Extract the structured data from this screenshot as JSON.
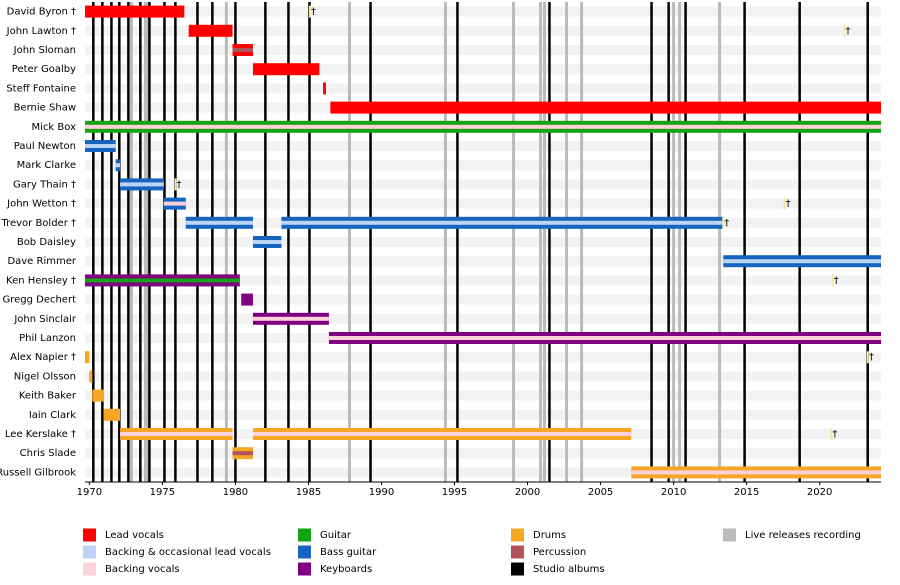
{
  "chart_data": {
    "type": "timeline",
    "xlim": [
      1969.7,
      2024.2
    ],
    "xticks": [
      1970,
      1975,
      1980,
      1985,
      1990,
      1995,
      2000,
      2005,
      2010,
      2015,
      2020
    ],
    "death_symbol": "†",
    "roles": [
      {
        "name": "Lead vocals",
        "color": "#ff0000"
      },
      {
        "name": "Backing & occasional lead vocals",
        "color": "#bcd4f6"
      },
      {
        "name": "Backing vocals",
        "color": "#fcd3da"
      },
      {
        "name": "Guitar",
        "color": "#13a313"
      },
      {
        "name": "Bass guitar",
        "color": "#1565c0"
      },
      {
        "name": "Keyboards",
        "color": "#800080"
      },
      {
        "name": "Drums",
        "color": "#f5a623"
      },
      {
        "name": "Percussion",
        "color": "#b0545a"
      }
    ],
    "studio_albums": {
      "name": "Studio albums",
      "color": "#000000",
      "years": [
        1970.27,
        1970.89,
        1971.51,
        1972.05,
        1972.67,
        1973.49,
        1974.11,
        1975.14,
        1975.89,
        1977.4,
        1978.42,
        1980.0,
        1982.05,
        1983.63,
        1985.07,
        1989.25,
        1995.2,
        2001.5,
        2008.49,
        2009.66,
        2010.82,
        2014.86,
        2018.63,
        2023.29
      ]
    },
    "live_releases": {
      "name": "Live releases recording",
      "color": "#bbbbbb",
      "years": [
        1972.88,
        1973.84,
        1973.97,
        1979.38,
        1987.81,
        1994.38,
        1999.04,
        2000.89,
        2001.16,
        2002.67,
        2003.7,
        2010.0,
        2010.41,
        2013.15
      ]
    },
    "members": [
      {
        "name": "David Byron †",
        "died": 1985.1,
        "periods": [
          {
            "role": "Lead vocals",
            "start": 1969.7,
            "end": 1976.5
          }
        ]
      },
      {
        "name": "John Lawton †",
        "died": 2021.7,
        "periods": [
          {
            "role": "Lead vocals",
            "start": 1976.8,
            "end": 1979.8
          }
        ]
      },
      {
        "name": "John Sloman",
        "periods": [
          {
            "role": "Lead vocals",
            "secondary": "Percussion",
            "start": 1979.8,
            "end": 1981.2
          }
        ]
      },
      {
        "name": "Peter Goalby",
        "periods": [
          {
            "role": "Lead vocals",
            "start": 1981.2,
            "end": 1985.75
          }
        ]
      },
      {
        "name": "Steff Fontaine",
        "periods": [
          {
            "role": "Lead vocals",
            "start": 1986.0,
            "end": 1986.2
          }
        ]
      },
      {
        "name": "Bernie Shaw",
        "periods": [
          {
            "role": "Lead vocals",
            "start": 1986.5,
            "end": 2024.2
          }
        ]
      },
      {
        "name": "Mick Box",
        "periods": [
          {
            "role": "Guitar",
            "secondary": "Backing vocals",
            "start": 1969.7,
            "end": 2024.2
          }
        ]
      },
      {
        "name": "Paul Newton",
        "periods": [
          {
            "role": "Bass guitar",
            "secondary": "Backing & occasional lead vocals",
            "start": 1969.7,
            "end": 1971.8
          }
        ]
      },
      {
        "name": "Mark Clarke",
        "periods": [
          {
            "role": "Bass guitar",
            "secondary": "Backing & occasional lead vocals",
            "start": 1971.8,
            "end": 1972.1
          }
        ]
      },
      {
        "name": "Gary Thain †",
        "died": 1975.9,
        "periods": [
          {
            "role": "Bass guitar",
            "secondary": "Backing & occasional lead vocals",
            "start": 1972.1,
            "end": 1975.1
          }
        ]
      },
      {
        "name": "John Wetton †",
        "died": 2017.6,
        "periods": [
          {
            "role": "Bass guitar",
            "secondary": "Backing vocals",
            "start": 1975.1,
            "end": 1976.6
          }
        ]
      },
      {
        "name": "Trevor Bolder †",
        "died": 2013.4,
        "periods": [
          {
            "role": "Bass guitar",
            "secondary": "Backing & occasional lead vocals",
            "start": 1976.6,
            "end": 1981.2
          },
          {
            "role": "Bass guitar",
            "secondary": "Backing & occasional lead vocals",
            "start": 1983.15,
            "end": 2013.4
          }
        ]
      },
      {
        "name": "Bob Daisley",
        "periods": [
          {
            "role": "Bass guitar",
            "secondary": "Backing & occasional lead vocals",
            "start": 1981.2,
            "end": 1983.15
          }
        ]
      },
      {
        "name": "Dave Rimmer",
        "periods": [
          {
            "role": "Bass guitar",
            "secondary": "Backing & occasional lead vocals",
            "start": 2013.4,
            "end": 2024.2
          }
        ]
      },
      {
        "name": "Ken Hensley †",
        "died": 2020.9,
        "periods": [
          {
            "role": "Keyboards",
            "secondary": "Guitar",
            "start": 1969.7,
            "end": 1980.3
          }
        ]
      },
      {
        "name": "Gregg Dechert",
        "periods": [
          {
            "role": "Keyboards",
            "start": 1980.4,
            "end": 1981.2
          }
        ]
      },
      {
        "name": "John Sinclair",
        "periods": [
          {
            "role": "Keyboards",
            "secondary": "Backing vocals",
            "start": 1981.2,
            "end": 1986.4
          }
        ]
      },
      {
        "name": "Phil Lanzon",
        "periods": [
          {
            "role": "Keyboards",
            "secondary": "Backing vocals",
            "start": 1986.4,
            "end": 2024.2
          }
        ]
      },
      {
        "name": "Alex Napier †",
        "died": 2023.3,
        "periods": [
          {
            "role": "Drums",
            "start": 1969.7,
            "end": 1970.0
          }
        ]
      },
      {
        "name": "Nigel Olsson",
        "periods": [
          {
            "role": "Drums",
            "start": 1970.0,
            "end": 1970.2
          }
        ]
      },
      {
        "name": "Keith Baker",
        "periods": [
          {
            "role": "Drums",
            "start": 1970.2,
            "end": 1971.0
          }
        ]
      },
      {
        "name": "Iain Clark",
        "periods": [
          {
            "role": "Drums",
            "start": 1971.0,
            "end": 1972.1
          }
        ]
      },
      {
        "name": "Lee Kerslake †",
        "died": 2020.8,
        "periods": [
          {
            "role": "Drums",
            "secondary": "Backing vocals",
            "start": 1972.1,
            "end": 1979.8
          },
          {
            "role": "Drums",
            "secondary": "Backing vocals",
            "start": 1981.2,
            "end": 2007.1
          }
        ]
      },
      {
        "name": "Chris Slade",
        "periods": [
          {
            "role": "Drums",
            "secondary": "Percussion",
            "start": 1979.8,
            "end": 1981.2
          }
        ]
      },
      {
        "name": "Russell Gilbrook",
        "periods": [
          {
            "role": "Drums",
            "secondary": "Backing vocals",
            "start": 2007.1,
            "end": 2024.2
          }
        ]
      }
    ]
  }
}
